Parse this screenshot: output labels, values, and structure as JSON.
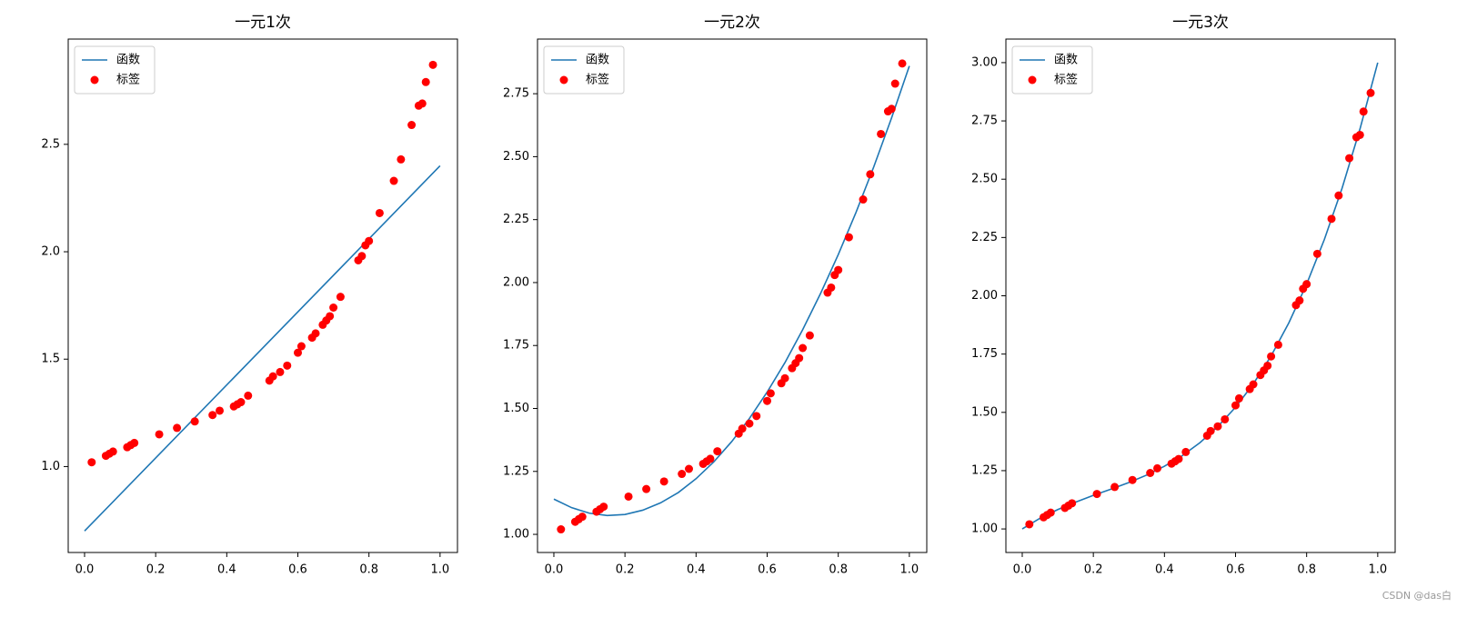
{
  "chart_data": [
    {
      "type": "combo",
      "title": "一元1次",
      "xlim": [
        -0.046,
        1.049
      ],
      "ylim": [
        0.6,
        2.99
      ],
      "xticks": [
        {
          "value": 0,
          "label": "0.0"
        },
        {
          "value": 0.2,
          "label": "0.2"
        },
        {
          "value": 0.4,
          "label": "0.4"
        },
        {
          "value": 0.6,
          "label": "0.6"
        },
        {
          "value": 0.8,
          "label": "0.8"
        },
        {
          "value": 1,
          "label": "1.0"
        }
      ],
      "yticks": [
        {
          "value": 1,
          "label": "1.0"
        },
        {
          "value": 1.5,
          "label": "1.5"
        },
        {
          "value": 2,
          "label": "2.0"
        },
        {
          "value": 2.5,
          "label": "2.5"
        }
      ],
      "legend": "upper-left",
      "series": [
        {
          "name": "函数",
          "type": "line",
          "color": "#1f77b4",
          "x": [
            0,
            1
          ],
          "values": [
            0.7,
            2.4
          ]
        },
        {
          "name": "标签",
          "type": "scatter",
          "color": "#ff0000",
          "x": [
            0.02,
            0.06,
            0.07,
            0.08,
            0.12,
            0.13,
            0.14,
            0.21,
            0.26,
            0.31,
            0.36,
            0.38,
            0.42,
            0.43,
            0.44,
            0.46,
            0.52,
            0.53,
            0.55,
            0.57,
            0.6,
            0.61,
            0.64,
            0.65,
            0.67,
            0.68,
            0.69,
            0.7,
            0.72,
            0.77,
            0.78,
            0.79,
            0.8,
            0.83,
            0.87,
            0.89,
            0.92,
            0.94,
            0.95,
            0.96,
            0.98
          ],
          "values": [
            1.02,
            1.05,
            1.06,
            1.07,
            1.09,
            1.1,
            1.11,
            1.15,
            1.18,
            1.21,
            1.24,
            1.26,
            1.28,
            1.29,
            1.3,
            1.33,
            1.4,
            1.42,
            1.44,
            1.47,
            1.53,
            1.56,
            1.6,
            1.62,
            1.66,
            1.68,
            1.7,
            1.74,
            1.79,
            1.96,
            1.98,
            2.03,
            2.05,
            2.18,
            2.33,
            2.43,
            2.59,
            2.68,
            2.69,
            2.79,
            2.87
          ]
        }
      ]
    },
    {
      "type": "combo",
      "title": "一元2次",
      "xlim": [
        -0.046,
        1.049
      ],
      "ylim": [
        0.928,
        2.967
      ],
      "xticks": [
        {
          "value": 0,
          "label": "0.0"
        },
        {
          "value": 0.2,
          "label": "0.2"
        },
        {
          "value": 0.4,
          "label": "0.4"
        },
        {
          "value": 0.6,
          "label": "0.6"
        },
        {
          "value": 0.8,
          "label": "0.8"
        },
        {
          "value": 1,
          "label": "1.0"
        }
      ],
      "yticks": [
        {
          "value": 1,
          "label": "1.00"
        },
        {
          "value": 1.25,
          "label": "1.25"
        },
        {
          "value": 1.5,
          "label": "1.50"
        },
        {
          "value": 1.75,
          "label": "1.75"
        },
        {
          "value": 2,
          "label": "2.00"
        },
        {
          "value": 2.25,
          "label": "2.25"
        },
        {
          "value": 2.5,
          "label": "2.50"
        },
        {
          "value": 2.75,
          "label": "2.75"
        }
      ],
      "legend": "upper-left",
      "series": [
        {
          "name": "函数",
          "type": "line",
          "color": "#1f77b4",
          "x": [
            0,
            0.05,
            0.1,
            0.15,
            0.2,
            0.25,
            0.3,
            0.35,
            0.4,
            0.45,
            0.5,
            0.55,
            0.6,
            0.65,
            0.7,
            0.75,
            0.8,
            0.85,
            0.9,
            0.95,
            1
          ],
          "values": [
            1.14,
            1.106,
            1.084,
            1.075,
            1.079,
            1.096,
            1.125,
            1.166,
            1.221,
            1.288,
            1.368,
            1.46,
            1.565,
            1.682,
            1.813,
            1.956,
            2.111,
            2.279,
            2.46,
            2.654,
            2.86
          ]
        },
        {
          "name": "标签",
          "type": "scatter",
          "color": "#ff0000",
          "x": [
            0.02,
            0.06,
            0.07,
            0.08,
            0.12,
            0.13,
            0.14,
            0.21,
            0.26,
            0.31,
            0.36,
            0.38,
            0.42,
            0.43,
            0.44,
            0.46,
            0.52,
            0.53,
            0.55,
            0.57,
            0.6,
            0.61,
            0.64,
            0.65,
            0.67,
            0.68,
            0.69,
            0.7,
            0.72,
            0.77,
            0.78,
            0.79,
            0.8,
            0.83,
            0.87,
            0.89,
            0.92,
            0.94,
            0.95,
            0.96,
            0.98
          ],
          "values": [
            1.02,
            1.05,
            1.06,
            1.07,
            1.09,
            1.1,
            1.11,
            1.15,
            1.18,
            1.21,
            1.24,
            1.26,
            1.28,
            1.29,
            1.3,
            1.33,
            1.4,
            1.42,
            1.44,
            1.47,
            1.53,
            1.56,
            1.6,
            1.62,
            1.66,
            1.68,
            1.7,
            1.74,
            1.79,
            1.96,
            1.98,
            2.03,
            2.05,
            2.18,
            2.33,
            2.43,
            2.59,
            2.68,
            2.69,
            2.79,
            2.87
          ]
        }
      ]
    },
    {
      "type": "combo",
      "title": "一元3次",
      "xlim": [
        -0.046,
        1.049
      ],
      "ylim": [
        0.899,
        3.101
      ],
      "xticks": [
        {
          "value": 0,
          "label": "0.0"
        },
        {
          "value": 0.2,
          "label": "0.2"
        },
        {
          "value": 0.4,
          "label": "0.4"
        },
        {
          "value": 0.6,
          "label": "0.6"
        },
        {
          "value": 0.8,
          "label": "0.8"
        },
        {
          "value": 1,
          "label": "1.0"
        }
      ],
      "yticks": [
        {
          "value": 1,
          "label": "1.00"
        },
        {
          "value": 1.25,
          "label": "1.25"
        },
        {
          "value": 1.5,
          "label": "1.50"
        },
        {
          "value": 1.75,
          "label": "1.75"
        },
        {
          "value": 2,
          "label": "2.00"
        },
        {
          "value": 2.25,
          "label": "2.25"
        },
        {
          "value": 2.5,
          "label": "2.50"
        },
        {
          "value": 2.75,
          "label": "2.75"
        },
        {
          "value": 3,
          "label": "3.00"
        }
      ],
      "legend": "upper-left",
      "series": [
        {
          "name": "函数",
          "type": "line",
          "color": "#1f77b4",
          "x": [
            0,
            0.05,
            0.1,
            0.15,
            0.2,
            0.25,
            0.3,
            0.35,
            0.4,
            0.45,
            0.5,
            0.55,
            0.6,
            0.65,
            0.7,
            0.75,
            0.8,
            0.85,
            0.9,
            0.95,
            1
          ],
          "values": [
            1,
            1.046,
            1.083,
            1.115,
            1.144,
            1.171,
            1.199,
            1.231,
            1.269,
            1.314,
            1.37,
            1.439,
            1.522,
            1.622,
            1.742,
            1.884,
            2.05,
            2.242,
            2.463,
            2.715,
            3
          ]
        },
        {
          "name": "标签",
          "type": "scatter",
          "color": "#ff0000",
          "x": [
            0.02,
            0.06,
            0.07,
            0.08,
            0.12,
            0.13,
            0.14,
            0.21,
            0.26,
            0.31,
            0.36,
            0.38,
            0.42,
            0.43,
            0.44,
            0.46,
            0.52,
            0.53,
            0.55,
            0.57,
            0.6,
            0.61,
            0.64,
            0.65,
            0.67,
            0.68,
            0.69,
            0.7,
            0.72,
            0.77,
            0.78,
            0.79,
            0.8,
            0.83,
            0.87,
            0.89,
            0.92,
            0.94,
            0.95,
            0.96,
            0.98
          ],
          "values": [
            1.02,
            1.05,
            1.06,
            1.07,
            1.09,
            1.1,
            1.11,
            1.15,
            1.18,
            1.21,
            1.24,
            1.26,
            1.28,
            1.29,
            1.3,
            1.33,
            1.4,
            1.42,
            1.44,
            1.47,
            1.53,
            1.56,
            1.6,
            1.62,
            1.66,
            1.68,
            1.7,
            1.74,
            1.79,
            1.96,
            1.98,
            2.03,
            2.05,
            2.18,
            2.33,
            2.43,
            2.59,
            2.68,
            2.69,
            2.79,
            2.87
          ]
        }
      ]
    }
  ],
  "watermark": "CSDN @das白"
}
